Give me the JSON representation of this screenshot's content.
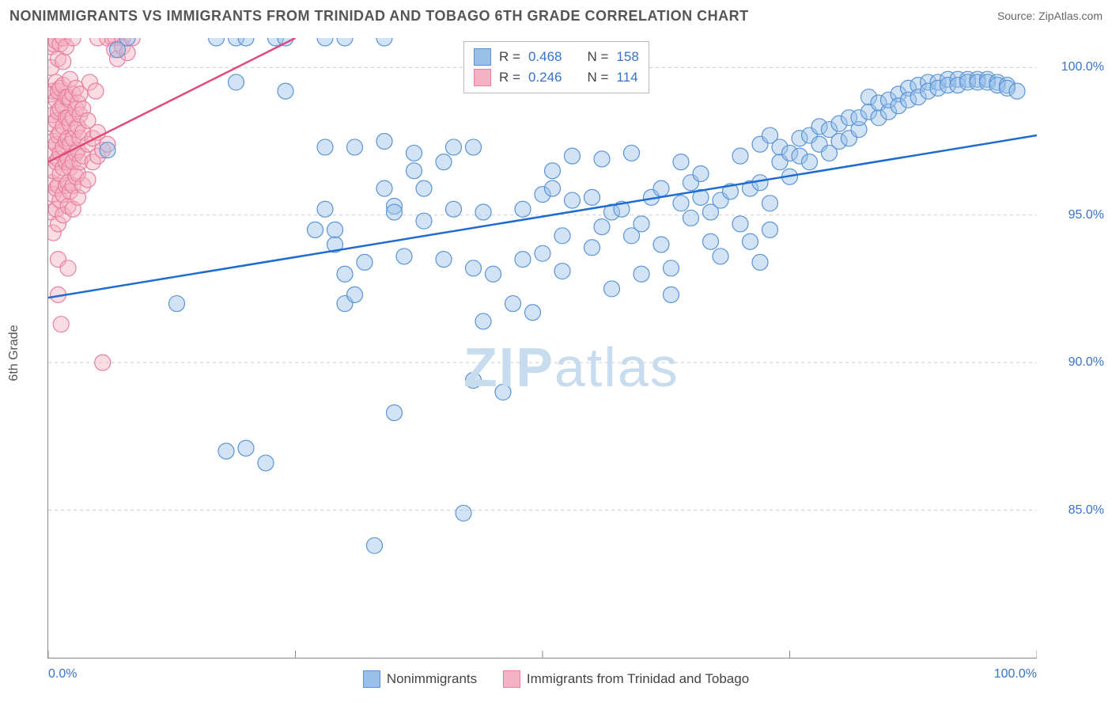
{
  "title": "NONIMMIGRANTS VS IMMIGRANTS FROM TRINIDAD AND TOBAGO 6TH GRADE CORRELATION CHART",
  "source_label": "Source:",
  "source_value": "ZipAtlas.com",
  "y_axis_label": "6th Grade",
  "watermark": "ZIPatlas",
  "chart": {
    "type": "scatter",
    "background_color": "#ffffff",
    "grid_color": "#cccccc",
    "axis_color": "#888888",
    "xlim": [
      0,
      100
    ],
    "ylim": [
      80,
      101
    ],
    "x_ticks": [
      0,
      25,
      50,
      75,
      100
    ],
    "x_tick_labels": [
      "0.0%",
      "",
      "",
      "",
      "100.0%"
    ],
    "y_ticks": [
      85,
      90,
      95,
      100
    ],
    "y_tick_labels": [
      "85.0%",
      "90.0%",
      "95.0%",
      "100.0%"
    ],
    "marker_radius": 10,
    "marker_opacity": 0.45,
    "line_width": 2.5,
    "series": [
      {
        "name": "Nonimmigrants",
        "fill_color": "#9bc0e8",
        "stroke_color": "#5a94d6",
        "line_color": "#1f6cd0",
        "R": "0.468",
        "N": "158",
        "trend": {
          "x1": 0,
          "y1": 92.2,
          "x2": 100,
          "y2": 97.7
        },
        "points": [
          [
            6,
            97.2
          ],
          [
            7,
            100.6
          ],
          [
            8,
            101
          ],
          [
            17,
            101
          ],
          [
            19,
            101
          ],
          [
            20,
            101
          ],
          [
            23,
            101
          ],
          [
            24,
            101
          ],
          [
            28,
            101
          ],
          [
            30,
            101
          ],
          [
            34,
            101
          ],
          [
            19,
            99.5
          ],
          [
            24,
            99.2
          ],
          [
            13,
            92
          ],
          [
            18,
            87
          ],
          [
            20,
            87.1
          ],
          [
            22,
            86.6
          ],
          [
            27,
            94.5
          ],
          [
            28,
            97.3
          ],
          [
            28,
            95.2
          ],
          [
            29,
            94
          ],
          [
            31,
            97.3
          ],
          [
            29,
            94.5
          ],
          [
            30,
            93
          ],
          [
            30,
            92
          ],
          [
            31,
            92.3
          ],
          [
            32,
            93.4
          ],
          [
            33,
            83.8
          ],
          [
            34,
            97.5
          ],
          [
            34,
            95.9
          ],
          [
            35,
            95.3
          ],
          [
            35,
            95.1
          ],
          [
            36,
            93.6
          ],
          [
            35,
            88.3
          ],
          [
            37,
            97.1
          ],
          [
            37,
            96.5
          ],
          [
            38,
            94.8
          ],
          [
            38,
            95.9
          ],
          [
            40,
            96.8
          ],
          [
            40,
            93.5
          ],
          [
            41,
            97.3
          ],
          [
            41,
            95.2
          ],
          [
            42,
            84.9
          ],
          [
            43,
            97.3
          ],
          [
            43,
            93.2
          ],
          [
            43,
            89.4
          ],
          [
            44,
            95.1
          ],
          [
            44,
            91.4
          ],
          [
            45,
            93.0
          ],
          [
            46,
            89.0
          ],
          [
            47,
            92.0
          ],
          [
            48,
            95.2
          ],
          [
            48,
            93.5
          ],
          [
            49,
            91.7
          ],
          [
            50,
            93.7
          ],
          [
            50,
            95.7
          ],
          [
            51,
            95.9
          ],
          [
            51,
            96.5
          ],
          [
            52,
            94.3
          ],
          [
            52,
            93.1
          ],
          [
            53,
            97.0
          ],
          [
            53,
            95.5
          ],
          [
            55,
            95.6
          ],
          [
            55,
            93.9
          ],
          [
            56,
            96.9
          ],
          [
            56,
            94.6
          ],
          [
            57,
            92.5
          ],
          [
            57,
            95.1
          ],
          [
            58,
            95.2
          ],
          [
            59,
            94.3
          ],
          [
            59,
            97.1
          ],
          [
            60,
            94.7
          ],
          [
            60,
            93.0
          ],
          [
            61,
            95.6
          ],
          [
            62,
            95.9
          ],
          [
            62,
            94.0
          ],
          [
            63,
            93.2
          ],
          [
            63,
            92.3
          ],
          [
            64,
            95.4
          ],
          [
            64,
            96.8
          ],
          [
            65,
            94.9
          ],
          [
            65,
            96.1
          ],
          [
            66,
            96.4
          ],
          [
            66,
            95.6
          ],
          [
            67,
            94.1
          ],
          [
            67,
            95.1
          ],
          [
            68,
            95.5
          ],
          [
            68,
            93.6
          ],
          [
            69,
            95.8
          ],
          [
            70,
            94.7
          ],
          [
            70,
            97.0
          ],
          [
            71,
            95.9
          ],
          [
            71,
            94.1
          ],
          [
            72,
            97.4
          ],
          [
            72,
            96.1
          ],
          [
            73,
            95.4
          ],
          [
            73,
            97.7
          ],
          [
            74,
            96.8
          ],
          [
            74,
            97.3
          ],
          [
            75,
            97.1
          ],
          [
            75,
            96.3
          ],
          [
            76,
            97.6
          ],
          [
            76,
            97.0
          ],
          [
            77,
            97.7
          ],
          [
            77,
            96.8
          ],
          [
            78,
            97.4
          ],
          [
            78,
            98
          ],
          [
            79,
            97.1
          ],
          [
            79,
            97.9
          ],
          [
            80,
            98.1
          ],
          [
            80,
            97.5
          ],
          [
            81,
            98.3
          ],
          [
            81,
            97.6
          ],
          [
            82,
            97.9
          ],
          [
            82,
            98.3
          ],
          [
            83,
            98.5
          ],
          [
            83,
            99.0
          ],
          [
            84,
            98.3
          ],
          [
            84,
            98.8
          ],
          [
            85,
            98.5
          ],
          [
            85,
            98.9
          ],
          [
            86,
            99.1
          ],
          [
            86,
            98.7
          ],
          [
            87,
            99.3
          ],
          [
            87,
            98.9
          ],
          [
            88,
            99.4
          ],
          [
            88,
            99.0
          ],
          [
            89,
            99.5
          ],
          [
            89,
            99.2
          ],
          [
            90,
            99.5
          ],
          [
            90,
            99.3
          ],
          [
            91,
            99.6
          ],
          [
            91,
            99.4
          ],
          [
            92,
            99.6
          ],
          [
            92,
            99.4
          ],
          [
            93,
            99.6
          ],
          [
            93,
            99.5
          ],
          [
            94,
            99.6
          ],
          [
            94,
            99.5
          ],
          [
            95,
            99.6
          ],
          [
            95,
            99.5
          ],
          [
            96,
            99.5
          ],
          [
            96,
            99.4
          ],
          [
            97,
            99.4
          ],
          [
            97,
            99.3
          ],
          [
            98,
            99.2
          ],
          [
            72,
            93.4
          ],
          [
            73,
            94.5
          ]
        ]
      },
      {
        "name": "Immigrants from Trinidad and Tobago",
        "fill_color": "#f4b2c4",
        "stroke_color": "#e87fa0",
        "line_color": "#e04a7a",
        "R": "0.246",
        "N": "114",
        "trend": {
          "x1": 0,
          "y1": 96.8,
          "x2": 25,
          "y2": 101
        },
        "points": [
          [
            0.3,
            95.1
          ],
          [
            0.3,
            96.1
          ],
          [
            0.3,
            97.2
          ],
          [
            0.3,
            98.1
          ],
          [
            0.3,
            99.1
          ],
          [
            0.3,
            100.0
          ],
          [
            0.3,
            100.7
          ],
          [
            0.5,
            94.4
          ],
          [
            0.5,
            95.7
          ],
          [
            0.5,
            96.5
          ],
          [
            0.5,
            97.5
          ],
          [
            0.5,
            98.4
          ],
          [
            0.5,
            99.2
          ],
          [
            0.5,
            100.8
          ],
          [
            0.8,
            95.2
          ],
          [
            0.8,
            95.9
          ],
          [
            0.8,
            96.8
          ],
          [
            0.8,
            97.4
          ],
          [
            0.8,
            98.2
          ],
          [
            0.8,
            98.9
          ],
          [
            0.8,
            99.5
          ],
          [
            0.8,
            100.9
          ],
          [
            1.0,
            93.5
          ],
          [
            1.0,
            94.7
          ],
          [
            1.0,
            96.0
          ],
          [
            1.0,
            96.9
          ],
          [
            1.0,
            97.7
          ],
          [
            1.0,
            98.5
          ],
          [
            1.0,
            99.2
          ],
          [
            1.0,
            100.3
          ],
          [
            1.2,
            95.5
          ],
          [
            1.2,
            96.4
          ],
          [
            1.2,
            97.1
          ],
          [
            1.2,
            97.8
          ],
          [
            1.2,
            98.6
          ],
          [
            1.2,
            99.3
          ],
          [
            1.2,
            100.8
          ],
          [
            1.5,
            95.0
          ],
          [
            1.5,
            95.7
          ],
          [
            1.5,
            96.6
          ],
          [
            1.5,
            97.3
          ],
          [
            1.5,
            98.0
          ],
          [
            1.5,
            98.7
          ],
          [
            1.5,
            99.4
          ],
          [
            1.5,
            100.2
          ],
          [
            1.5,
            101.0
          ],
          [
            1.8,
            96.0
          ],
          [
            1.8,
            96.8
          ],
          [
            1.8,
            97.5
          ],
          [
            1.8,
            98.3
          ],
          [
            1.8,
            99.0
          ],
          [
            1.8,
            100.7
          ],
          [
            2.0,
            95.3
          ],
          [
            2.0,
            96.1
          ],
          [
            2.0,
            96.9
          ],
          [
            2.0,
            97.6
          ],
          [
            2.0,
            98.3
          ],
          [
            2.0,
            99.0
          ],
          [
            2.2,
            95.8
          ],
          [
            2.2,
            96.6
          ],
          [
            2.2,
            97.4
          ],
          [
            2.2,
            98.1
          ],
          [
            2.2,
            98.9
          ],
          [
            2.2,
            99.6
          ],
          [
            2.5,
            95.2
          ],
          [
            2.5,
            96.0
          ],
          [
            2.5,
            96.8
          ],
          [
            2.5,
            97.6
          ],
          [
            2.5,
            98.3
          ],
          [
            2.5,
            99.1
          ],
          [
            2.5,
            101
          ],
          [
            2.8,
            96.3
          ],
          [
            2.8,
            97.1
          ],
          [
            2.8,
            97.9
          ],
          [
            2.8,
            98.6
          ],
          [
            2.8,
            99.3
          ],
          [
            3.0,
            95.6
          ],
          [
            3.0,
            96.4
          ],
          [
            3.0,
            97.2
          ],
          [
            3.0,
            98.0
          ],
          [
            3.0,
            98.8
          ],
          [
            3.2,
            96.8
          ],
          [
            3.2,
            97.6
          ],
          [
            3.2,
            98.4
          ],
          [
            3.2,
            99.1
          ],
          [
            3.5,
            96.0
          ],
          [
            3.5,
            97.0
          ],
          [
            3.5,
            97.8
          ],
          [
            3.5,
            98.6
          ],
          [
            4.0,
            96.2
          ],
          [
            4.0,
            97.4
          ],
          [
            4.0,
            98.2
          ],
          [
            4.5,
            96.8
          ],
          [
            4.5,
            97.6
          ],
          [
            5.0,
            97.0
          ],
          [
            5.0,
            97.8
          ],
          [
            5.0,
            101
          ],
          [
            5.5,
            97.2
          ],
          [
            6.0,
            97.4
          ],
          [
            6.0,
            101
          ],
          [
            6.5,
            101
          ],
          [
            6.8,
            101
          ],
          [
            7.5,
            101
          ],
          [
            1.0,
            92.3
          ],
          [
            1.3,
            91.3
          ],
          [
            2.0,
            93.2
          ],
          [
            5.5,
            90.0
          ],
          [
            6.7,
            100.6
          ],
          [
            7.0,
            100.3
          ],
          [
            7.5,
            100.7
          ],
          [
            8.0,
            100.5
          ],
          [
            8.5,
            101
          ],
          [
            4.2,
            99.5
          ],
          [
            4.8,
            99.2
          ]
        ]
      }
    ]
  },
  "top_legend": {
    "r_label": "R =",
    "n_label": "N ="
  },
  "bottom_legend": {
    "series1": "Nonimmigrants",
    "series2": "Immigrants from Trinidad and Tobago"
  }
}
